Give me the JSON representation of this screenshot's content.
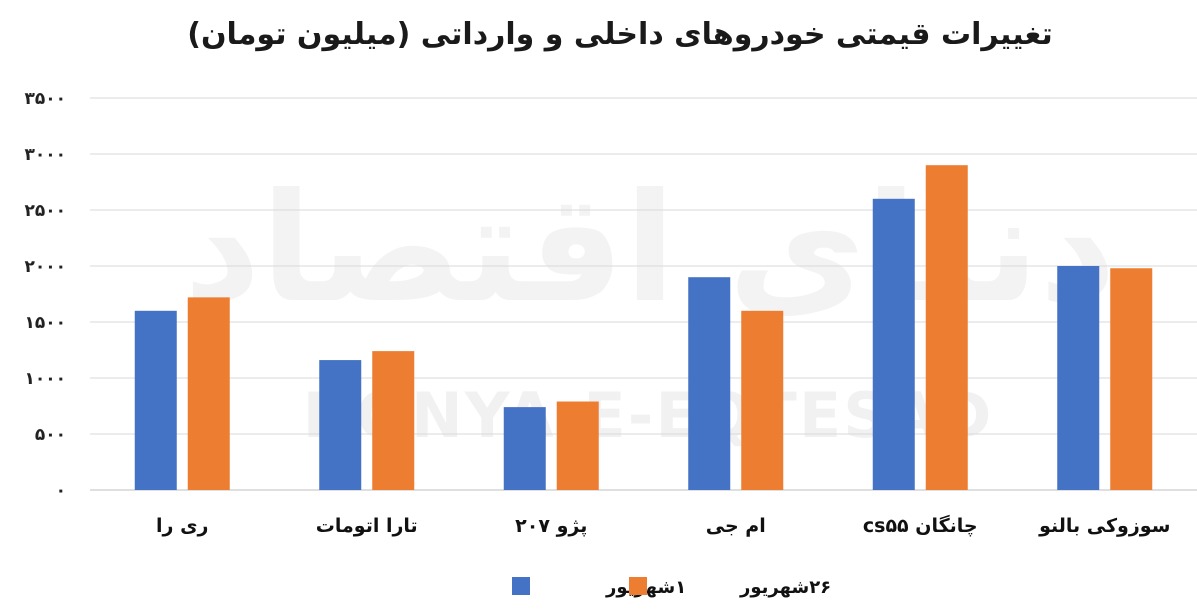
{
  "chart_data": {
    "type": "bar",
    "title": "تغییرات قیمتی خودروهای داخلی و وارداتی (میلیون تومان)",
    "categories": [
      "ری را",
      "تارا اتومات",
      "پژو ۲۰۷",
      "ام جی",
      "چانگان cs۵۵",
      "سوزوکی بالنو"
    ],
    "series": [
      {
        "name": "۱شهریور",
        "color": "#4472C4",
        "values": [
          1600,
          1160,
          740,
          1900,
          2600,
          2000
        ]
      },
      {
        "name": "۲۶شهریور",
        "color": "#ED7D31",
        "values": [
          1720,
          1240,
          790,
          1600,
          2900,
          1980
        ]
      }
    ],
    "ylim": [
      0,
      3500
    ],
    "yticks": [
      0,
      500,
      1000,
      1500,
      2000,
      2500,
      3000,
      3500
    ],
    "ytick_labels": [
      "۰",
      "۵۰۰",
      "۱۰۰۰",
      "۱۵۰۰",
      "۲۰۰۰",
      "۲۵۰۰",
      "۳۰۰۰",
      "۳۵۰۰"
    ],
    "grid": true,
    "legend_position": "bottom"
  },
  "watermark": {
    "text": "DONYA-E-EQTESAD",
    "logo_text": "دنیای اقتصاد"
  }
}
